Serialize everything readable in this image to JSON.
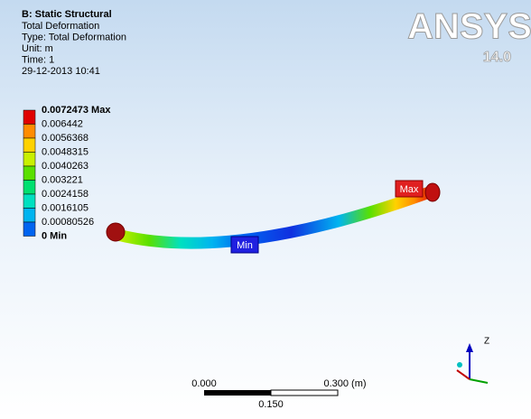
{
  "header": {
    "title": "B: Static Structural",
    "lines": [
      "Total Deformation",
      "Type: Total Deformation",
      "Unit: m",
      "Time: 1",
      "29-12-2013 10:41"
    ]
  },
  "logo": {
    "name": "ANSYS",
    "version": "14.0"
  },
  "legend": [
    {
      "label": "0.0072473 Max",
      "color": "#e00000"
    },
    {
      "label": "0.006442",
      "color": "#ff8c00"
    },
    {
      "label": "0.0056368",
      "color": "#ffd200"
    },
    {
      "label": "0.0048315",
      "color": "#c8f000"
    },
    {
      "label": "0.0040263",
      "color": "#5ae000"
    },
    {
      "label": "0.003221",
      "color": "#00e070"
    },
    {
      "label": "0.0024158",
      "color": "#00e0c0"
    },
    {
      "label": "0.0016105",
      "color": "#00b4f0"
    },
    {
      "label": "0.00080526",
      "color": "#0064f0"
    },
    {
      "label": "0 Min",
      "color": "#0000d0"
    }
  ],
  "probes": {
    "max": "Max",
    "min": "Min"
  },
  "scale_bar": {
    "left": "0.000",
    "right": "0.300 (m)",
    "middle": "0.150"
  },
  "triad": {
    "z": "Z"
  }
}
